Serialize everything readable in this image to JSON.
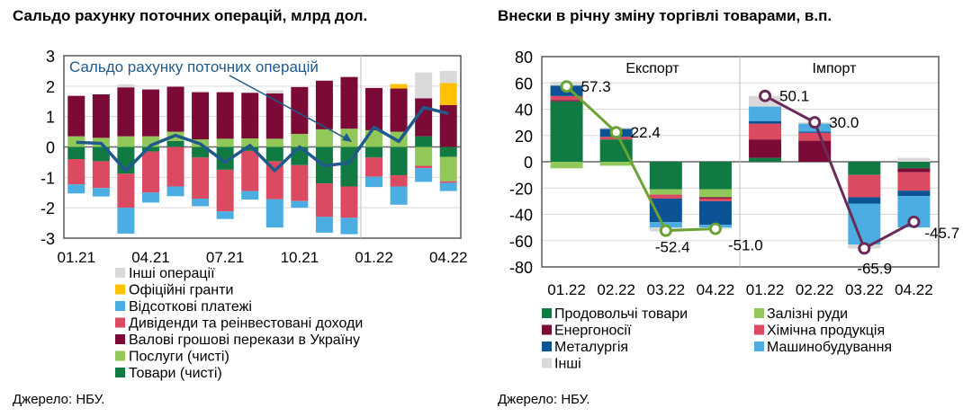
{
  "chart_data": [
    {
      "type": "bar",
      "stacked": true,
      "title": "Сальдо рахунку поточних операцій, млрд дол.",
      "source": "Джерело: НБУ.",
      "categories": [
        "01.21",
        "02.21",
        "03.21",
        "04.21",
        "05.21",
        "06.21",
        "07.21",
        "08.21",
        "09.21",
        "10.21",
        "11.21",
        "12.21",
        "01.22",
        "02.22",
        "03.22",
        "04.22"
      ],
      "xtick_labels": [
        "01.21",
        "04.21",
        "07.21",
        "10.21",
        "01.22",
        "04.22"
      ],
      "yticks": [
        3,
        2,
        1,
        0,
        -1,
        -2,
        -3
      ],
      "ylim": [
        -3,
        3
      ],
      "grid": true,
      "legend_position": "bottom",
      "series": [
        {
          "name": "Інші операції",
          "color": "#d9d9d9",
          "values": [
            0,
            0,
            0.1,
            0,
            0,
            0.03,
            0,
            0,
            0.1,
            0,
            0,
            0,
            0,
            0,
            0.85,
            0.4
          ]
        },
        {
          "name": "Офіційні гранти",
          "color": "#ffc000",
          "values": [
            0,
            0,
            0,
            0,
            0,
            0,
            0,
            0,
            0,
            0,
            0,
            0,
            0,
            0.15,
            0,
            0.72
          ]
        },
        {
          "name": "Відсоткові платежі",
          "color": "#4badE2",
          "values": [
            -0.3,
            -0.28,
            -0.85,
            -0.33,
            -0.32,
            -0.25,
            -0.25,
            -0.28,
            -0.93,
            -0.22,
            -0.52,
            -0.54,
            -0.34,
            -0.6,
            -0.45,
            -0.27
          ]
        },
        {
          "name": "Дивіденди та реінвестовані доходи",
          "color": "#dc4a62",
          "values": [
            -0.83,
            -0.88,
            -1.12,
            -1.35,
            -1.3,
            -1.35,
            -1.37,
            -1.32,
            -1.25,
            -1.18,
            -1.1,
            -1.03,
            -0.63,
            -0.37,
            -0.08,
            -0.05
          ]
        },
        {
          "name": "Валові грошові перекази в Україну",
          "color": "#7b0a37",
          "values": [
            1.33,
            1.43,
            1.61,
            1.54,
            1.48,
            1.55,
            1.53,
            1.5,
            1.49,
            1.54,
            1.6,
            1.7,
            1.39,
            1.42,
            1.25,
            1.38
          ]
        },
        {
          "name": "Послуги (чисті)",
          "color": "#92c85a",
          "values": [
            0.35,
            0.3,
            0.35,
            0.35,
            0.3,
            0.25,
            0.27,
            0.28,
            0.27,
            0.43,
            0.58,
            0.6,
            0.55,
            0.5,
            -0.62,
            -0.8
          ]
        },
        {
          "name": "Товари (чисті)",
          "color": "#117a43",
          "values": [
            -0.4,
            -0.47,
            -0.88,
            -0.15,
            0.2,
            -0.35,
            -0.75,
            -0.13,
            -0.47,
            -0.6,
            -1.2,
            -1.3,
            -0.35,
            -0.93,
            0.35,
            -0.33
          ]
        }
      ],
      "stack_order": [
        6,
        5,
        4,
        3,
        2,
        1,
        0
      ],
      "line": {
        "name": "Сальдо рахунку поточних операцій",
        "color": "#1f5a8a",
        "values": [
          0.15,
          0.12,
          -0.78,
          0.05,
          0.38,
          0.1,
          -0.5,
          0.05,
          -0.78,
          0,
          -0.62,
          -0.52,
          0.65,
          0.18,
          1.3,
          1.1
        ]
      }
    },
    {
      "type": "bar",
      "stacked": true,
      "title": "Внески в річну зміну торгівлі товарами, в.п.",
      "source": "Джерело: НБУ.",
      "groups": [
        "Експорт",
        "Імпорт"
      ],
      "categories": [
        "01.22",
        "02.22",
        "03.22",
        "04.22",
        "01.22",
        "02.22",
        "03.22",
        "04.22"
      ],
      "yticks": [
        80,
        60,
        40,
        20,
        0,
        -20,
        -40,
        -60,
        -80
      ],
      "ylim": [
        -80,
        80
      ],
      "grid": true,
      "legend_position": "bottom",
      "series": [
        {
          "name": "Продовольчі товари",
          "color": "#117a43",
          "values": [
            46,
            17,
            -21,
            -21,
            3,
            0,
            -10,
            -5
          ]
        },
        {
          "name": "Залізні руди",
          "color": "#92c85a",
          "values": [
            -5,
            -3,
            -4,
            -6,
            0,
            0,
            0,
            0
          ]
        },
        {
          "name": "Енергоносії",
          "color": "#7b0a37",
          "values": [
            1,
            0,
            0,
            -1,
            14,
            16,
            0,
            -3
          ]
        },
        {
          "name": "Хімічна продукція",
          "color": "#dc4a62",
          "values": [
            3,
            2,
            -3,
            -2,
            12,
            6,
            -17,
            -14
          ]
        },
        {
          "name": "Металургія",
          "color": "#0b5394",
          "values": [
            8,
            6,
            -18,
            -18,
            2,
            1,
            -5,
            -4
          ]
        },
        {
          "name": "Машинобудування",
          "color": "#4badE2",
          "values": [
            0,
            0,
            -4,
            -2,
            11,
            6,
            -31,
            -24
          ]
        },
        {
          "name": "Інші",
          "color": "#d9d9d9",
          "values": [
            3,
            1,
            -3,
            -1,
            8,
            1,
            -3,
            3
          ]
        }
      ],
      "lines": [
        {
          "group": "Експорт",
          "color": "#6aa233",
          "values": [
            57.3,
            22.4,
            -52.4,
            -51.0
          ],
          "labels": [
            "57.3",
            "22.4",
            "-52.4",
            "-51.0"
          ]
        },
        {
          "group": "Імпорт",
          "color": "#6b2b58",
          "values": [
            50.1,
            30.0,
            -65.9,
            -45.7
          ],
          "labels": [
            "50.1",
            "30.0",
            "-65.9",
            "-45.7"
          ]
        }
      ]
    }
  ]
}
